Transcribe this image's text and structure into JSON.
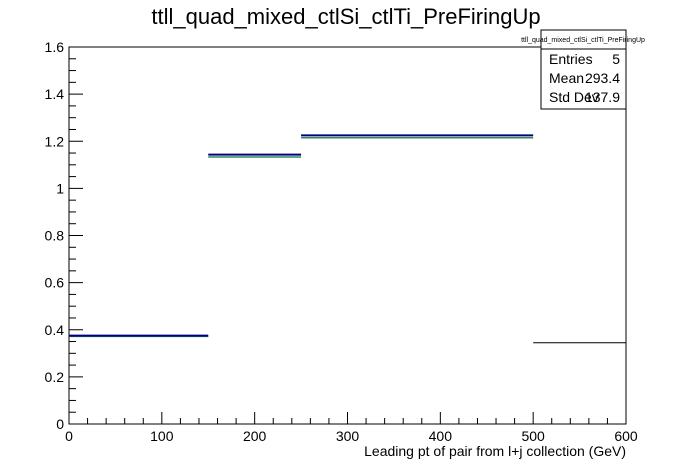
{
  "chart_data": {
    "type": "bar",
    "title": "ttll_quad_mixed_ctlSi_ctlTi_PreFiringUp",
    "xlabel": "Leading pt of pair from l+j collection (GeV)",
    "ylabel": "",
    "xlim": [
      0,
      600
    ],
    "ylim": [
      0,
      1.6
    ],
    "x_ticks": [
      "0",
      "100",
      "200",
      "300",
      "400",
      "500",
      "600"
    ],
    "y_ticks": [
      "0",
      "0.2",
      "0.4",
      "0.6",
      "0.8",
      "1",
      "1.2",
      "1.4",
      "1.6"
    ],
    "bins": [
      {
        "low": 0,
        "high": 150,
        "value": 0.375
      },
      {
        "low": 150,
        "high": 250,
        "value": 1.143
      },
      {
        "low": 250,
        "high": 500,
        "value": 1.225
      },
      {
        "low": 500,
        "high": 600,
        "value": 0.345
      }
    ],
    "shifted_bins": [
      {
        "low": 0,
        "high": 150,
        "value": 0.372
      },
      {
        "low": 150,
        "high": 250,
        "value": 1.133
      },
      {
        "low": 250,
        "high": 500,
        "value": 1.215
      }
    ],
    "series_colors": {
      "nominal": "#000080",
      "shifted": "#2e8b57",
      "overflow": "#000000"
    },
    "stats": {
      "title": "ttll_quad_mixed_ctlSi_ctlTi_PreFiringUp",
      "rows": [
        {
          "label": "Entries",
          "value": "5"
        },
        {
          "label": "Mean",
          "value": "293.4"
        },
        {
          "label": "Std Dev",
          "value": "137.9"
        }
      ]
    },
    "legend_position": "top-right",
    "grid": false
  }
}
